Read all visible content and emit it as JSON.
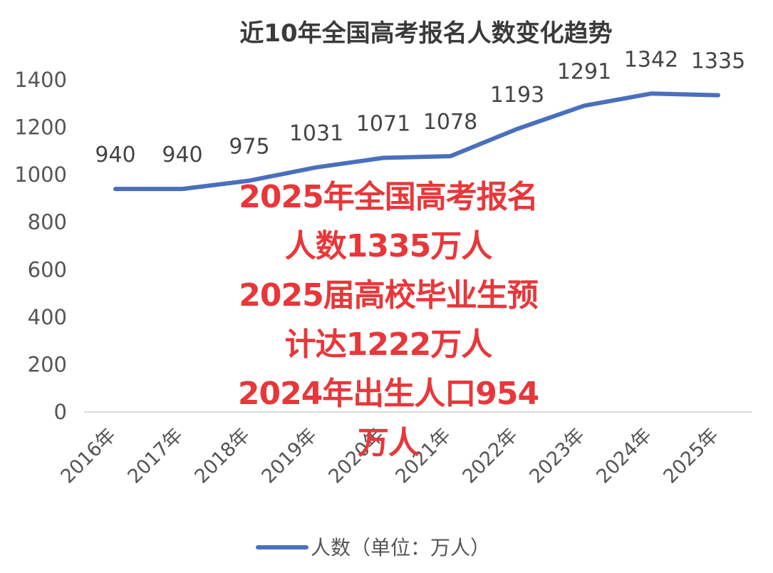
{
  "chart_data": {
    "type": "line",
    "title": "近10年全国高考报名人数变化趋势",
    "categories": [
      "2016年",
      "2017年",
      "2018年",
      "2019年",
      "2020年",
      "2021年",
      "2022年",
      "2023年",
      "2024年",
      "2025年"
    ],
    "series": [
      {
        "name": "人数（单位：万人）",
        "values": [
          940,
          940,
          975,
          1031,
          1071,
          1078,
          1193,
          1291,
          1342,
          1335
        ],
        "color": "#4a6fbd"
      }
    ],
    "ylim": [
      0,
      1400
    ],
    "yticks": [
      0,
      200,
      400,
      600,
      800,
      1000,
      1200,
      1400
    ],
    "legend": "bottom",
    "grid": false
  },
  "overlay": {
    "lines": [
      "2025年全国高考报名",
      "人数1335万人",
      "2025届高校毕业生预",
      "计达1222万人",
      "2024年出生人口954",
      "万人"
    ],
    "color": "#e8373a"
  }
}
